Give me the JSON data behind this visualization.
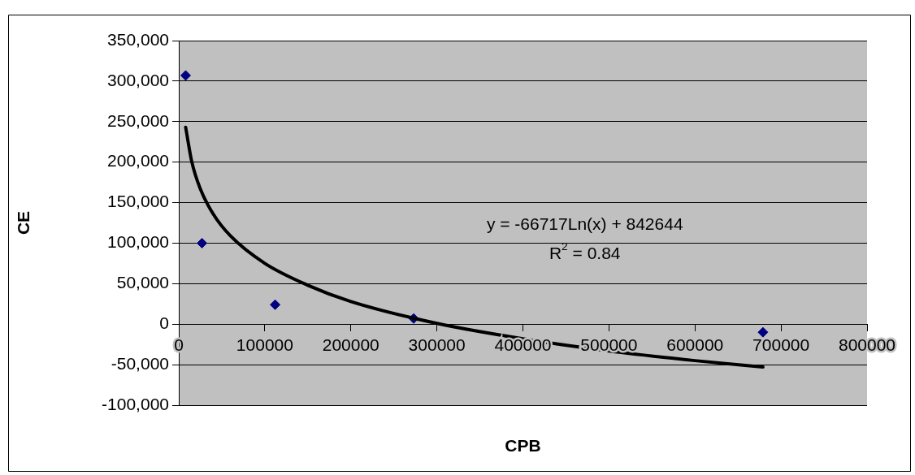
{
  "chart_data": {
    "type": "scatter",
    "xlabel": "CPB",
    "ylabel": "CE",
    "xlim": [
      0,
      800000
    ],
    "xticks": [
      0,
      100000,
      200000,
      300000,
      400000,
      500000,
      600000,
      700000,
      800000
    ],
    "ylim": [
      -100000,
      350000
    ],
    "yticks": [
      {
        "value": -100000,
        "label": "-100,000"
      },
      {
        "value": -50000,
        "label": "-50,000"
      },
      {
        "value": 0,
        "label": "0"
      },
      {
        "value": 50000,
        "label": "50,000"
      },
      {
        "value": 100000,
        "label": "100,000"
      },
      {
        "value": 150000,
        "label": "150,000"
      },
      {
        "value": 200000,
        "label": "200,000"
      },
      {
        "value": 250000,
        "label": "250,000"
      },
      {
        "value": 300000,
        "label": "300,000"
      },
      {
        "value": 350000,
        "label": "350,000"
      }
    ],
    "grid": "y",
    "legend": false,
    "marker": "diamond",
    "series": [
      {
        "color": "#000080",
        "x": [
          8000,
          27000,
          112000,
          273000,
          679000
        ],
        "values": [
          307000,
          100000,
          24000,
          7000,
          -10000
        ]
      },
      {
        "type": "line",
        "color": "#000000",
        "marker": "none",
        "x": [
          8000,
          15000,
          25000,
          40000,
          60000,
          100000,
          150000,
          200000,
          300000,
          400000,
          500000,
          600000,
          679000
        ],
        "values": [
          243000,
          201000,
          167000,
          136000,
          109000,
          75000,
          48000,
          28000,
          1000,
          -18000,
          -33000,
          -45000,
          -53000
        ]
      }
    ],
    "annotations": [
      "y = -66717Ln(x) + 842644",
      "R$^{2}$ = 0.84"
    ]
  }
}
